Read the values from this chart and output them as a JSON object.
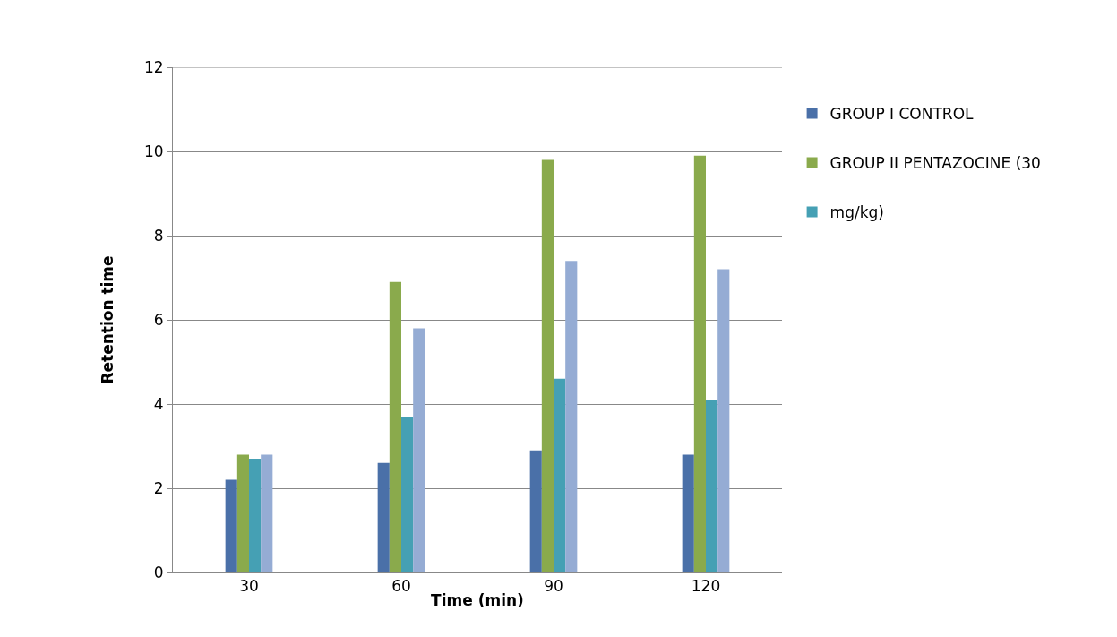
{
  "chart_data": {
    "type": "bar",
    "xlabel": "Time (min)",
    "ylabel": "Retention time",
    "categories": [
      "30",
      "60",
      "90",
      "120"
    ],
    "series": [
      {
        "name": "GROUP I CONTROL",
        "color": "#4a70a8",
        "values": [
          2.2,
          2.6,
          2.9,
          2.8
        ]
      },
      {
        "name": "GROUP II PENTAZOCINE (30",
        "color": "#8aaa4c",
        "values": [
          2.8,
          6.9,
          9.8,
          9.9
        ]
      },
      {
        "name": "mg/kg)",
        "color": "#45a0b4",
        "values": [
          2.7,
          3.7,
          4.6,
          4.1
        ]
      },
      {
        "color": "#95acd4",
        "values": [
          2.8,
          5.8,
          7.4,
          7.2
        ]
      }
    ],
    "ylim": [
      0,
      12
    ],
    "yticks": [
      0,
      2,
      4,
      6,
      8,
      10,
      12
    ],
    "grid": "y",
    "legend": "right"
  }
}
